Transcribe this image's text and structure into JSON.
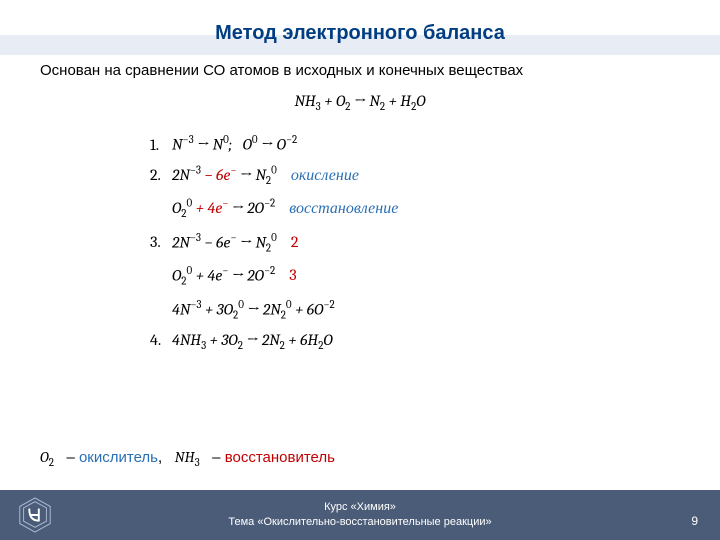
{
  "title": "Метод электронного баланса",
  "subtitle": "Основан на сравнении СО атомов в исходных и конечных веществах",
  "mainEq": "NH<sub>3</sub> + O<sub>2</sub> → N<sub>2</sub> + H<sub>2</sub>O",
  "steps": {
    "s1": "N<sup>−3</sup> → N<sup>0</sup>;&nbsp;&nbsp;&nbsp;O<sup>0</sup> → O<sup>−2</sup>",
    "s2a_left": "2N<sup>−3</sup>",
    "s2a_mid": " − 6e<sup>−</sup>",
    "s2a_right": " → N<sub>2</sub><sup>0</sup>",
    "s2a_ann": "окисление",
    "s2b_left": "O<sub>2</sub><sup>0</sup>",
    "s2b_mid": " + 4e<sup>−</sup>",
    "s2b_right": " → 2O<sup>−2</sup>",
    "s2b_ann": "восстановление",
    "s3a": "2N<sup>−3</sup> − 6e<sup>−</sup> → N<sub>2</sub><sup>0</sup>",
    "s3a_coef": "2",
    "s3b": "O<sub>2</sub><sup>0</sup> + 4e<sup>−</sup> → 2O<sup>−2</sup>",
    "s3b_coef": "3",
    "s3c": "4N<sup>−3</sup> + 3O<sub>2</sub><sup>0</sup> → 2N<sub>2</sub><sup>0</sup> + 6O<sup>−2</sup>",
    "s4": "4NH<sub>3</sub> + 3O<sub>2</sub> → 2N<sub>2</sub> + 6H<sub>2</sub>O"
  },
  "final": {
    "f1": "O<sub>2</sub>",
    "t1": "– ",
    "ox": "окислитель",
    "t2": ",",
    "f2": "NH<sub>3</sub>",
    "t3": "– ",
    "red": "восстановитель"
  },
  "footer": {
    "l1": "Курс «Химия»",
    "l2": "Тема «Окислительно-восстановительные реакции»"
  },
  "pageNum": "9",
  "colors": {
    "titleColor": "#003d82",
    "bandColor": "#e8ecf4",
    "blueAnn": "#2a6fb5",
    "redText": "#c00000",
    "footerBg": "#4b5c78"
  }
}
